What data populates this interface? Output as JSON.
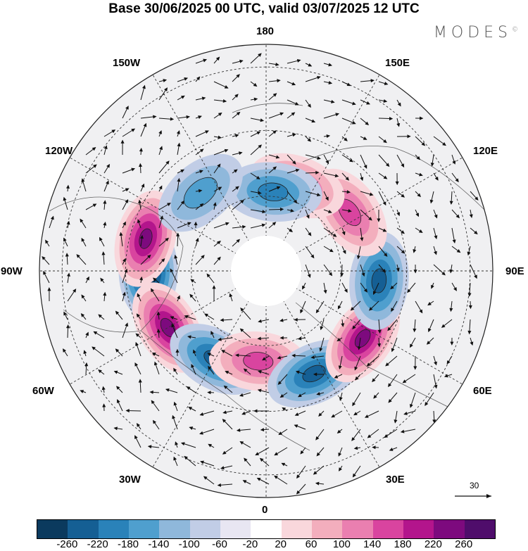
{
  "title": "Base 30/06/2025 00 UTC, valid 03/07/2025 12 UTC",
  "brand": "MODES",
  "brand_mark": "©",
  "longitude_labels": {
    "top": "180",
    "bottom": "0",
    "left": "90W",
    "right": "90E",
    "upper_left_1": "150W",
    "upper_left_2": "120W",
    "upper_right_1": "150E",
    "upper_right_2": "120E",
    "lower_left_1": "60W",
    "lower_left_2": "30W",
    "lower_right_1": "60E",
    "lower_right_2": "30E"
  },
  "reference_vector": {
    "label": "30"
  },
  "colorbar": {
    "ticks": [
      "-260",
      "-220",
      "-180",
      "-140",
      "-100",
      "-60",
      "-20",
      "20",
      "60",
      "100",
      "140",
      "180",
      "220",
      "260"
    ],
    "colors": [
      "#0b3a5e",
      "#155f94",
      "#2a82b9",
      "#4f9fce",
      "#8fb8db",
      "#c1cde6",
      "#e8e6f2",
      "#ffffff",
      "#f9d7dc",
      "#f3aebd",
      "#ea7fb0",
      "#d9449f",
      "#b3158c",
      "#7d0a7e",
      "#4f0d6b"
    ]
  },
  "anomaly_blobs": [
    {
      "lon": -90,
      "r": 0.52,
      "sign": "neg",
      "level": 6
    },
    {
      "lon": -105,
      "r": 0.55,
      "sign": "pos",
      "level": 5
    },
    {
      "lon": -60,
      "r": 0.5,
      "sign": "pos",
      "level": 5
    },
    {
      "lon": -30,
      "r": 0.45,
      "sign": "neg",
      "level": 4
    },
    {
      "lon": -5,
      "r": 0.4,
      "sign": "pos",
      "level": 3
    },
    {
      "lon": 25,
      "r": 0.5,
      "sign": "neg",
      "level": 4
    },
    {
      "lon": 55,
      "r": 0.52,
      "sign": "pos",
      "level": 5
    },
    {
      "lon": 85,
      "r": 0.5,
      "sign": "neg",
      "level": 4
    },
    {
      "lon": 125,
      "r": 0.45,
      "sign": "pos",
      "level": 3
    },
    {
      "lon": 160,
      "r": 0.4,
      "sign": "pos",
      "level": 3
    },
    {
      "lon": 175,
      "r": 0.35,
      "sign": "neg",
      "level": 3
    },
    {
      "lon": -140,
      "r": 0.45,
      "sign": "neg",
      "level": 2
    }
  ]
}
